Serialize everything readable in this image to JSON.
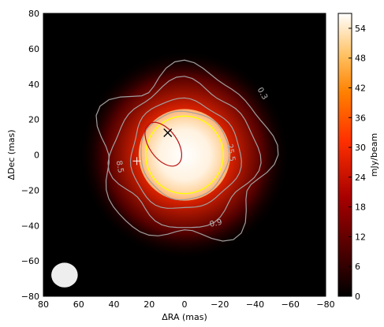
{
  "chart_data": {
    "type": "heatmap",
    "colormap": "gist_heat",
    "xlabel": "ΔRA (mas)",
    "ylabel": "ΔDec (mas)",
    "colorbar_label": "mJy/beam",
    "xlim": [
      80,
      -80
    ],
    "ylim": [
      -80,
      80
    ],
    "x_ticks": [
      80,
      60,
      40,
      20,
      0,
      -20,
      -40,
      -60,
      -80
    ],
    "y_ticks": [
      80,
      60,
      40,
      20,
      0,
      -20,
      -40,
      -60,
      -80
    ],
    "x_tick_labels": [
      "80",
      "60",
      "40",
      "20",
      "0",
      "−20",
      "−40",
      "−60",
      "−80"
    ],
    "y_tick_labels": [
      "80",
      "60",
      "40",
      "20",
      "0",
      "−20",
      "−40",
      "−60",
      "−80"
    ],
    "colorbar_range": [
      0,
      57
    ],
    "colorbar_ticks": [
      0,
      6,
      12,
      18,
      24,
      30,
      36,
      42,
      48,
      54
    ],
    "colorbar_tick_labels": [
      "0",
      "6",
      "12",
      "18",
      "24",
      "30",
      "36",
      "42",
      "48",
      "54"
    ],
    "source": {
      "center": [
        0,
        0
      ],
      "radius": 26,
      "peak": 57
    },
    "contour_levels": [
      0.3,
      0.9,
      8.5,
      25.5
    ],
    "contour_labels": [
      {
        "text": "0.3",
        "x": -43,
        "y": 34,
        "angle": 60
      },
      {
        "text": "0.9",
        "x": -18,
        "y": -40,
        "angle": -12
      },
      {
        "text": "8.5",
        "x": 38,
        "y": -7,
        "angle": 80
      },
      {
        "text": "25.5",
        "x": -25,
        "y": 1,
        "angle": 80
      }
    ],
    "uniform_disk": {
      "center": [
        0,
        0
      ],
      "radius": 22,
      "color": "#ffff00"
    },
    "inner_ellipse": {
      "center": [
        12,
        6
      ],
      "rx": 8,
      "ry": 14,
      "angle": -35,
      "color": "#bb1111"
    },
    "markers": [
      {
        "symbol": "x",
        "x": 9.5,
        "y": 12.5
      },
      {
        "symbol": "+",
        "x": 27,
        "y": -3.5
      }
    ],
    "beam": {
      "center": [
        68,
        -68
      ],
      "rx": 7.5,
      "ry": 7,
      "color": "#eeeeee"
    }
  }
}
